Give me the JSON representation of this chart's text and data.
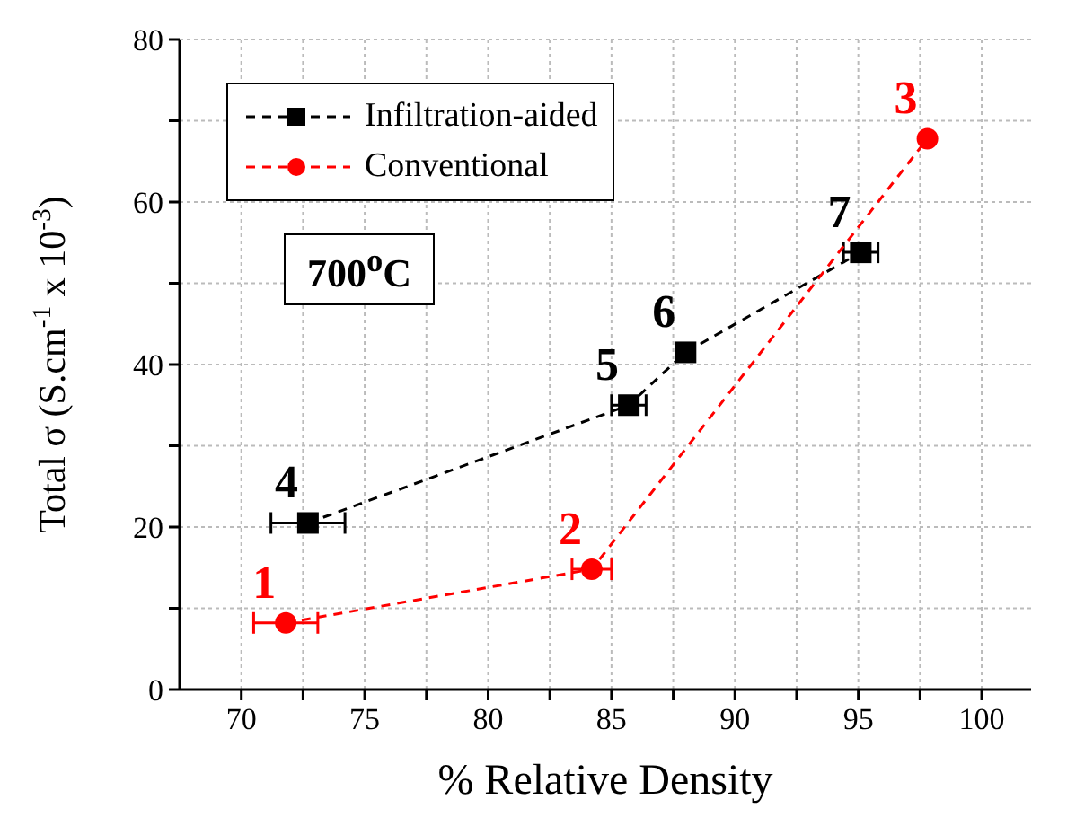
{
  "chart_data": {
    "type": "scatter",
    "xlabel": "% Relative Density",
    "ylabel": "Total σ  (S.cm$^{-1}$ x 10$^{-3}$)",
    "annotations": [
      "700$^{o}$C",
      {
        "text": "4",
        "x": 72.7,
        "y": 20.5
      },
      {
        "text": "5",
        "x": 85.7,
        "y": 35.0
      },
      {
        "text": "6",
        "x": 88.0,
        "y": 41.5
      },
      {
        "text": "7",
        "x": 95.1,
        "y": 53.8
      },
      {
        "text": "1",
        "x": 71.8,
        "y": 8.2
      },
      {
        "text": "2",
        "x": 84.2,
        "y": 14.8
      },
      {
        "text": "3",
        "x": 97.8,
        "y": 67.8
      }
    ],
    "xlim": [
      67.5,
      102
    ],
    "xticks": [
      70,
      {
        "value": 72.5,
        "label": null
      },
      75,
      {
        "value": 77.5,
        "label": null
      },
      80,
      {
        "value": 82.5,
        "label": null
      },
      85,
      {
        "value": 87.5,
        "label": null
      },
      90,
      {
        "value": 92.5,
        "label": null
      },
      95,
      {
        "value": 97.5,
        "label": null
      },
      100
    ],
    "ylim": [
      0,
      80
    ],
    "yticks": [
      0,
      {
        "value": 10,
        "label": null
      },
      20,
      {
        "value": 30,
        "label": null
      },
      40,
      {
        "value": 50,
        "label": null
      },
      60,
      {
        "value": 70,
        "label": null
      },
      80
    ],
    "grid": true,
    "legend": "top left",
    "line_style": "dashed",
    "series": [
      {
        "name": "Infiltration-aided",
        "color": "#000000",
        "marker": "square",
        "x": [
          72.7,
          85.7,
          88.0,
          95.1
        ],
        "values": [
          20.5,
          35.0,
          41.5,
          53.8
        ],
        "xerrors": [
          1.5,
          0.7,
          null,
          0.7
        ]
      },
      {
        "name": "Conventional",
        "color": "#ff0000",
        "marker": "circle",
        "x": [
          71.8,
          84.2,
          97.8
        ],
        "values": [
          8.2,
          14.8,
          67.8
        ],
        "xerrors": [
          1.3,
          0.8,
          null
        ]
      }
    ]
  }
}
